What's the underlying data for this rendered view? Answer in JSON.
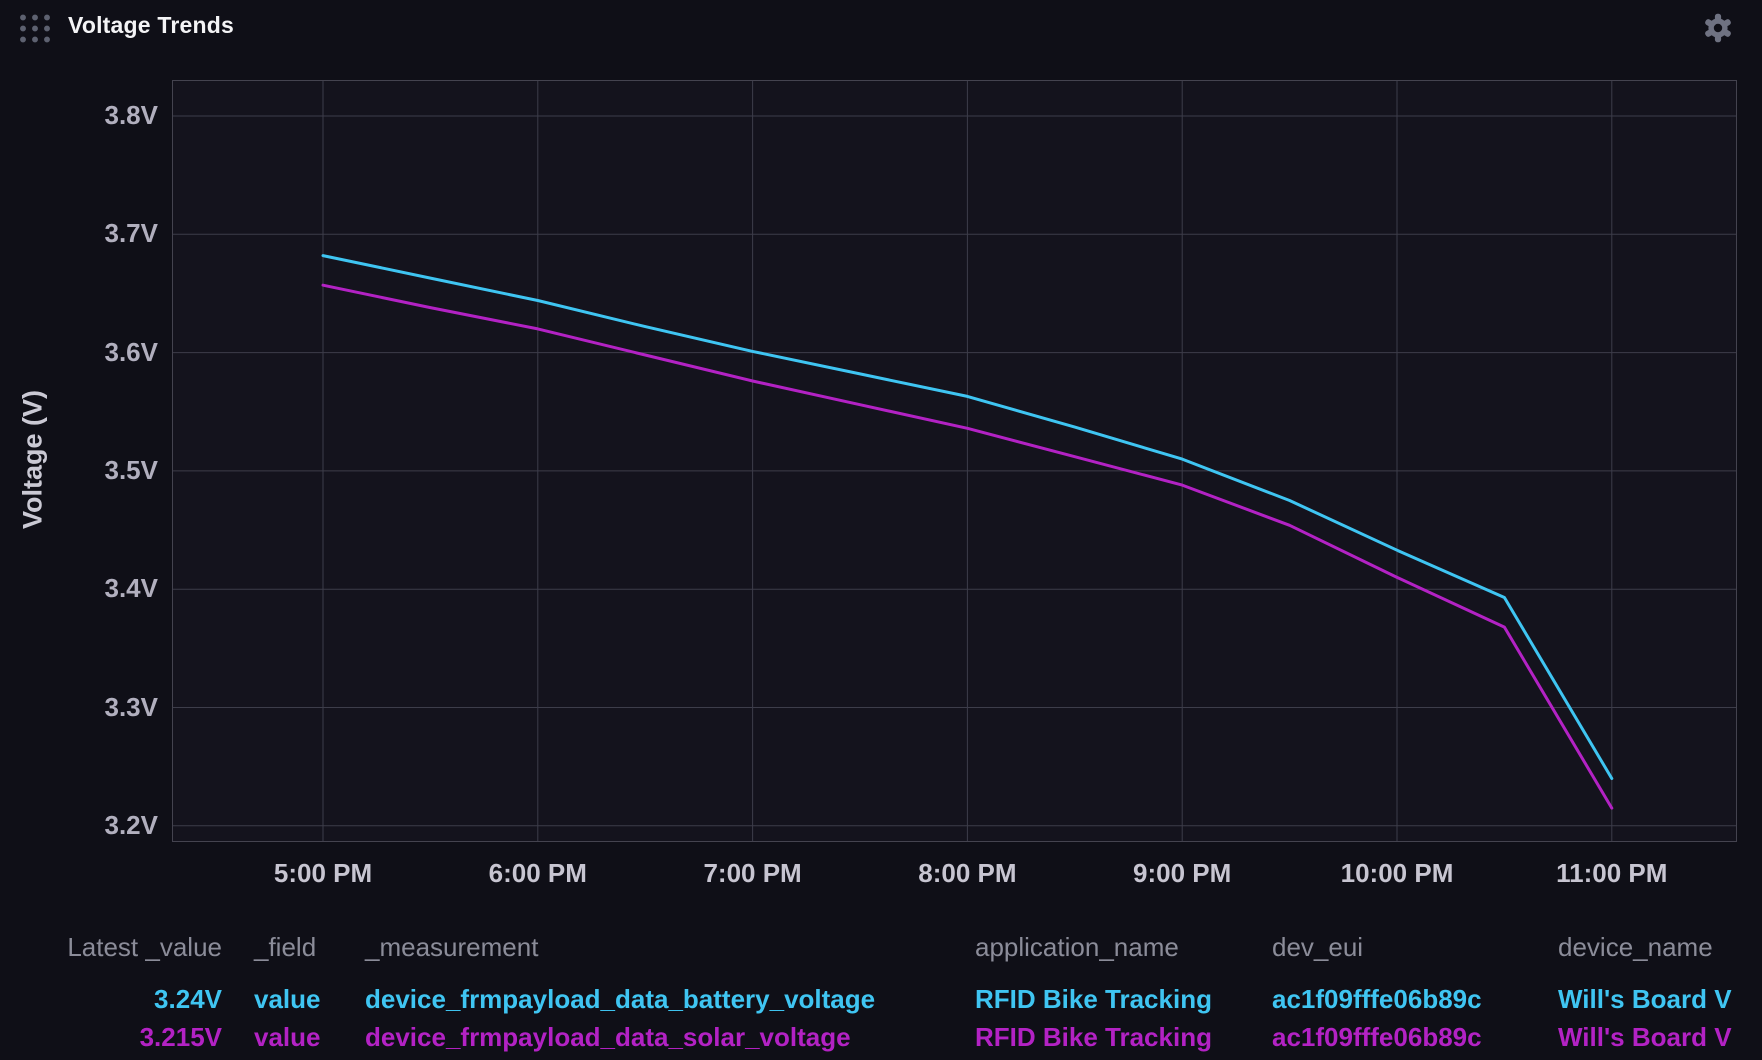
{
  "header": {
    "title": "Voltage Trends"
  },
  "chart_data": {
    "type": "line",
    "title": "Voltage Trends",
    "xlabel": "",
    "ylabel": "Voltage (V)",
    "x_ticks": [
      "5:00 PM",
      "6:00 PM",
      "7:00 PM",
      "8:00 PM",
      "9:00 PM",
      "10:00 PM",
      "11:00 PM"
    ],
    "x_tick_hours": [
      17,
      18,
      19,
      20,
      21,
      22,
      23
    ],
    "y_ticks": [
      "3.8V",
      "3.7V",
      "3.6V",
      "3.5V",
      "3.4V",
      "3.3V",
      "3.2V"
    ],
    "y_tick_values": [
      3.8,
      3.7,
      3.6,
      3.5,
      3.4,
      3.3,
      3.2
    ],
    "ylim": [
      3.16,
      3.83
    ],
    "xlim_hours": [
      16.3,
      23.58
    ],
    "grid": true,
    "legend_position": "bottom-table",
    "x_hours": [
      17,
      17.5,
      18,
      18.5,
      19,
      19.5,
      20,
      20.5,
      21,
      21.5,
      22,
      22.5,
      23
    ],
    "series": [
      {
        "name": "device_frmpayload_data_battery_voltage",
        "color": "#3fc5f2",
        "values": [
          3.682,
          3.663,
          3.644,
          3.622,
          3.601,
          3.582,
          3.563,
          3.537,
          3.51,
          3.475,
          3.433,
          3.393,
          3.24
        ]
      },
      {
        "name": "device_frmpayload_data_solar_voltage",
        "color": "#b322c4",
        "values": [
          3.657,
          3.638,
          3.62,
          3.598,
          3.576,
          3.556,
          3.536,
          3.512,
          3.488,
          3.454,
          3.41,
          3.368,
          3.215
        ]
      }
    ]
  },
  "legend": {
    "headers": [
      "Latest _value",
      "_field",
      "_measurement",
      "application_name",
      "dev_eui",
      "device_name"
    ],
    "rows": [
      {
        "color": "#3fc5f2",
        "latest_value": "3.24V",
        "field": "value",
        "measurement": "device_frmpayload_data_battery_voltage",
        "application_name": "RFID Bike Tracking",
        "dev_eui": "ac1f09fffe06b89c",
        "device_name": "Will's Board V"
      },
      {
        "color": "#b322c4",
        "latest_value": "3.215V",
        "field": "value",
        "measurement": "device_frmpayload_data_solar_voltage",
        "application_name": "RFID Bike Tracking",
        "dev_eui": "ac1f09fffe06b89c",
        "device_name": "Will's Board V"
      }
    ]
  }
}
